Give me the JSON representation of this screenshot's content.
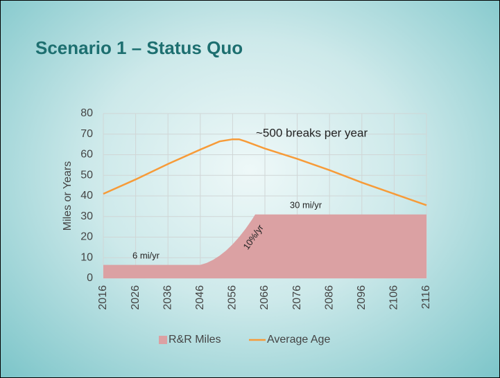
{
  "title": "Scenario 1 – Status Quo",
  "chart_data": {
    "type": "combo",
    "y_label": "Miles or Years",
    "xlim": [
      2016,
      2116
    ],
    "xticks": [
      2016,
      2026,
      2036,
      2046,
      2056,
      2066,
      2076,
      2086,
      2096,
      2106,
      2116
    ],
    "ylim": [
      0,
      80
    ],
    "yticks": [
      0,
      10,
      20,
      30,
      40,
      50,
      60,
      70,
      80
    ],
    "grid": true,
    "series": [
      {
        "name": "R&R Miles",
        "kind": "area",
        "color": "#dba1a3",
        "x": [
          2016,
          2046,
          2048,
          2050,
          2052,
          2054,
          2056,
          2058,
          2060,
          2062,
          2063,
          2116
        ],
        "values": [
          6.5,
          6.5,
          7.5,
          9,
          11,
          13.5,
          16.5,
          20,
          24,
          28.5,
          31,
          31
        ]
      },
      {
        "name": "Average Age",
        "kind": "line",
        "color": "#f79b38",
        "x": [
          2016,
          2026,
          2036,
          2046,
          2052,
          2056,
          2058,
          2060,
          2066,
          2076,
          2086,
          2096,
          2106,
          2116
        ],
        "values": [
          41,
          48,
          55.5,
          62.5,
          66.5,
          67.5,
          67.5,
          66.5,
          63,
          58,
          52.5,
          46.5,
          41,
          35.5
        ]
      }
    ],
    "annotations": [
      "~500 breaks per year",
      "30 mi/yr",
      "6 mi/yr",
      "10%/yr"
    ]
  }
}
